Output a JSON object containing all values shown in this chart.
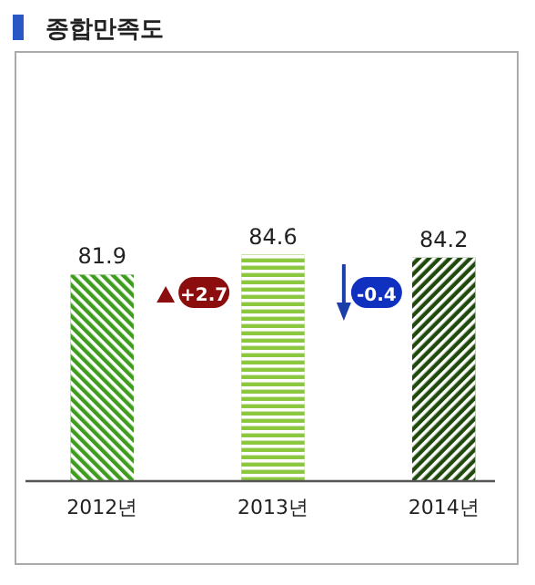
{
  "chart_data": {
    "type": "bar",
    "title": "종합만족도",
    "categories": [
      "2012년",
      "2013년",
      "2014년"
    ],
    "values": [
      81.9,
      84.6,
      84.2
    ],
    "colors": [
      "#3f9c1e",
      "#8dc63f",
      "#1f4a0c"
    ],
    "ylim": [
      54,
      112
    ],
    "data_labels": true,
    "annotations": [
      "+2.7",
      "-0.4"
    ]
  }
}
